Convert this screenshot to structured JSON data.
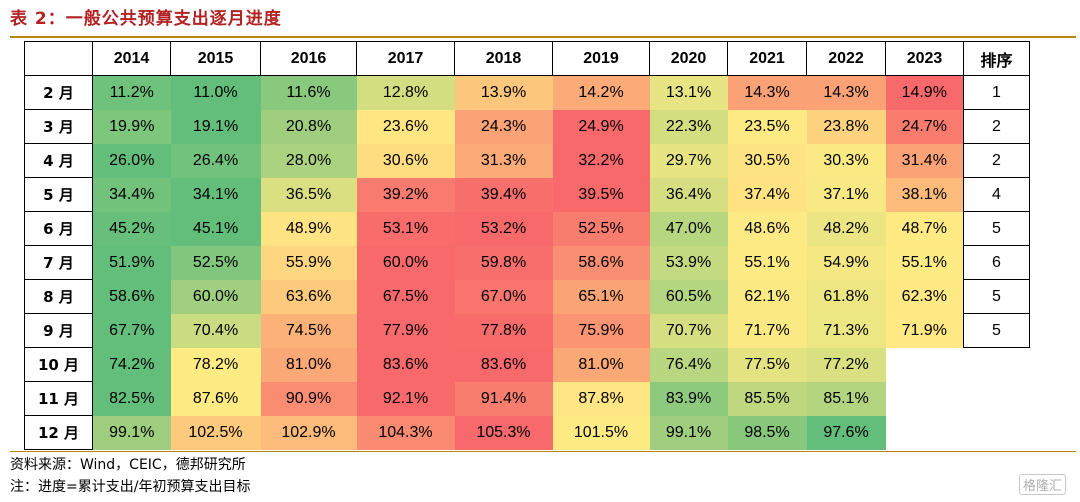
{
  "title": "表 2：一般公共预算支出逐月进度",
  "table": {
    "corner": "",
    "years": [
      "2014",
      "2015",
      "2016",
      "2017",
      "2018",
      "2019",
      "2020",
      "2021",
      "2022",
      "2023"
    ],
    "rank_header": "排序",
    "rows": [
      {
        "month": "2 月",
        "values": [
          "11.2%",
          "11.0%",
          "11.6%",
          "12.8%",
          "13.9%",
          "14.2%",
          "13.1%",
          "14.3%",
          "14.3%",
          "14.9%"
        ],
        "rank": "1"
      },
      {
        "month": "3 月",
        "values": [
          "19.9%",
          "19.1%",
          "20.8%",
          "23.6%",
          "24.3%",
          "24.9%",
          "22.3%",
          "23.5%",
          "23.8%",
          "24.7%"
        ],
        "rank": "2"
      },
      {
        "month": "4 月",
        "values": [
          "26.0%",
          "26.4%",
          "28.0%",
          "30.6%",
          "31.3%",
          "32.2%",
          "29.7%",
          "30.5%",
          "30.3%",
          "31.4%"
        ],
        "rank": "2"
      },
      {
        "month": "5 月",
        "values": [
          "34.4%",
          "34.1%",
          "36.5%",
          "39.2%",
          "39.4%",
          "39.5%",
          "36.4%",
          "37.4%",
          "37.1%",
          "38.1%"
        ],
        "rank": "4"
      },
      {
        "month": "6 月",
        "values": [
          "45.2%",
          "45.1%",
          "48.9%",
          "53.1%",
          "53.2%",
          "52.5%",
          "47.0%",
          "48.6%",
          "48.2%",
          "48.7%"
        ],
        "rank": "5"
      },
      {
        "month": "7 月",
        "values": [
          "51.9%",
          "52.5%",
          "55.9%",
          "60.0%",
          "59.8%",
          "58.6%",
          "53.9%",
          "55.1%",
          "54.9%",
          "55.1%"
        ],
        "rank": "6"
      },
      {
        "month": "8 月",
        "values": [
          "58.6%",
          "60.0%",
          "63.6%",
          "67.5%",
          "67.0%",
          "65.1%",
          "60.5%",
          "62.1%",
          "61.8%",
          "62.3%"
        ],
        "rank": "5"
      },
      {
        "month": "9 月",
        "values": [
          "67.7%",
          "70.4%",
          "74.5%",
          "77.9%",
          "77.8%",
          "75.9%",
          "70.7%",
          "71.7%",
          "71.3%",
          "71.9%"
        ],
        "rank": "5"
      },
      {
        "month": "10 月",
        "values": [
          "74.2%",
          "78.2%",
          "81.0%",
          "83.6%",
          "83.6%",
          "81.0%",
          "76.4%",
          "77.5%",
          "77.2%",
          ""
        ],
        "rank": ""
      },
      {
        "month": "11 月",
        "values": [
          "82.5%",
          "87.6%",
          "90.9%",
          "92.1%",
          "91.4%",
          "87.8%",
          "83.9%",
          "85.5%",
          "85.1%",
          ""
        ],
        "rank": ""
      },
      {
        "month": "12 月",
        "values": [
          "99.1%",
          "102.5%",
          "102.9%",
          "104.3%",
          "105.3%",
          "101.5%",
          "99.1%",
          "98.5%",
          "97.6%",
          ""
        ],
        "rank": ""
      }
    ]
  },
  "notes": {
    "source": "资料来源：Wind，CEIC，德邦研究所",
    "note": "注：进度=累计支出/年初预算支出目标"
  },
  "watermark": "格隆汇",
  "colors": {
    "title": "#b22222",
    "rule": "#b8860b",
    "scale_low": "#63be7b",
    "scale_mid": "#ffeb84",
    "scale_high": "#f8696b"
  }
}
